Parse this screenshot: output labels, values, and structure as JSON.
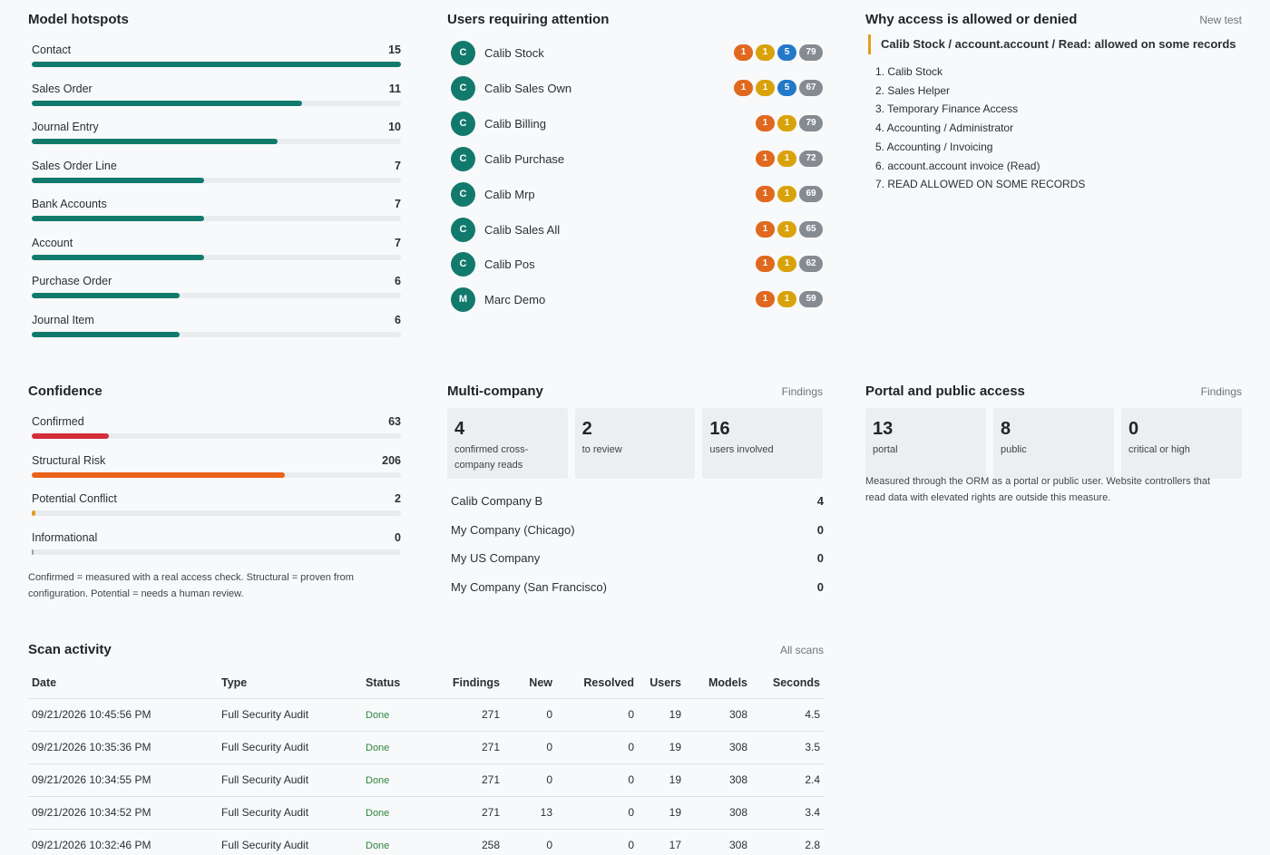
{
  "hotspots": {
    "title": "Model hotspots",
    "max": 15,
    "items": [
      {
        "label": "Contact",
        "value": 15
      },
      {
        "label": "Sales Order",
        "value": 11
      },
      {
        "label": "Journal Entry",
        "value": 10
      },
      {
        "label": "Sales Order Line",
        "value": 7
      },
      {
        "label": "Bank Accounts",
        "value": 7
      },
      {
        "label": "Account",
        "value": 7
      },
      {
        "label": "Purchase Order",
        "value": 6
      },
      {
        "label": "Journal Item",
        "value": 6
      }
    ]
  },
  "users": {
    "title": "Users requiring attention",
    "items": [
      {
        "initial": "C",
        "name": "Calib Stock",
        "badges": [
          {
            "t": "1",
            "c": "red"
          },
          {
            "t": "1",
            "c": "yel"
          },
          {
            "t": "5",
            "c": "blu"
          },
          {
            "t": "79",
            "c": "gry"
          }
        ]
      },
      {
        "initial": "C",
        "name": "Calib Sales Own",
        "badges": [
          {
            "t": "1",
            "c": "red"
          },
          {
            "t": "1",
            "c": "yel"
          },
          {
            "t": "5",
            "c": "blu"
          },
          {
            "t": "67",
            "c": "gry"
          }
        ]
      },
      {
        "initial": "C",
        "name": "Calib Billing",
        "badges": [
          {
            "t": "1",
            "c": "red"
          },
          {
            "t": "1",
            "c": "yel"
          },
          {
            "t": "79",
            "c": "gry"
          }
        ]
      },
      {
        "initial": "C",
        "name": "Calib Purchase",
        "badges": [
          {
            "t": "1",
            "c": "red"
          },
          {
            "t": "1",
            "c": "yel"
          },
          {
            "t": "72",
            "c": "gry"
          }
        ]
      },
      {
        "initial": "C",
        "name": "Calib Mrp",
        "badges": [
          {
            "t": "1",
            "c": "red"
          },
          {
            "t": "1",
            "c": "yel"
          },
          {
            "t": "69",
            "c": "gry"
          }
        ]
      },
      {
        "initial": "C",
        "name": "Calib Sales All",
        "badges": [
          {
            "t": "1",
            "c": "red"
          },
          {
            "t": "1",
            "c": "yel"
          },
          {
            "t": "65",
            "c": "gry"
          }
        ]
      },
      {
        "initial": "C",
        "name": "Calib Pos",
        "badges": [
          {
            "t": "1",
            "c": "red"
          },
          {
            "t": "1",
            "c": "yel"
          },
          {
            "t": "62",
            "c": "gry"
          }
        ]
      },
      {
        "initial": "M",
        "name": "Marc Demo",
        "badges": [
          {
            "t": "1",
            "c": "red"
          },
          {
            "t": "1",
            "c": "yel"
          },
          {
            "t": "59",
            "c": "gry"
          }
        ]
      }
    ]
  },
  "why": {
    "title": "Why access is allowed or denied",
    "link": "New test",
    "heading": "Calib Stock / account.account / Read: allowed on some records",
    "steps": [
      "1. Calib Stock",
      "2. Sales Helper",
      "3. Temporary Finance Access",
      "4. Accounting / Administrator",
      "5. Accounting / Invoicing",
      "6. account.account invoice (Read)",
      "7. READ ALLOWED ON SOME RECORDS"
    ]
  },
  "confidence": {
    "title": "Confidence",
    "max": 300,
    "items": [
      {
        "label": "Confirmed",
        "value": 63,
        "color": "#d42e3a"
      },
      {
        "label": "Structural Risk",
        "value": 206,
        "color": "#e8621a"
      },
      {
        "label": "Potential Conflict",
        "value": 2,
        "color": "#e0a020"
      },
      {
        "label": "Informational",
        "value": 0,
        "color": "#9aa0a6"
      }
    ],
    "note_line1": "Confirmed = measured with a real access check. Structural = proven from",
    "note_line2": "configuration. Potential = needs a human review."
  },
  "multicompany": {
    "title": "Multi-company",
    "link": "Findings",
    "stats": [
      {
        "num": "4",
        "cap": "confirmed cross-company reads"
      },
      {
        "num": "2",
        "cap": "to review"
      },
      {
        "num": "16",
        "cap": "users involved"
      }
    ],
    "companies": [
      {
        "name": "Calib Company B",
        "value": "4"
      },
      {
        "name": "My Company (Chicago)",
        "value": "0"
      },
      {
        "name": "My US Company",
        "value": "0"
      },
      {
        "name": "My Company (San Francisco)",
        "value": "0"
      }
    ]
  },
  "portal": {
    "title": "Portal and public access",
    "link": "Findings",
    "stats": [
      {
        "num": "13",
        "cap": "portal"
      },
      {
        "num": "8",
        "cap": "public"
      },
      {
        "num": "0",
        "cap": "critical or high"
      }
    ],
    "note_line1": "Measured through the ORM as a portal or public user. Website controllers that",
    "note_line2": "read data with elevated rights are outside this measure."
  },
  "scans": {
    "title": "Scan activity",
    "link": "All scans",
    "columns": [
      "Date",
      "Type",
      "Status",
      "Findings",
      "New",
      "Resolved",
      "Users",
      "Models",
      "Seconds"
    ],
    "rows": [
      [
        "09/21/2026 10:45:56 PM",
        "Full Security Audit",
        "Done",
        "271",
        "0",
        "0",
        "19",
        "308",
        "4.5"
      ],
      [
        "09/21/2026 10:35:36 PM",
        "Full Security Audit",
        "Done",
        "271",
        "0",
        "0",
        "19",
        "308",
        "3.5"
      ],
      [
        "09/21/2026 10:34:55 PM",
        "Full Security Audit",
        "Done",
        "271",
        "0",
        "0",
        "19",
        "308",
        "2.4"
      ],
      [
        "09/21/2026 10:34:52 PM",
        "Full Security Audit",
        "Done",
        "271",
        "13",
        "0",
        "19",
        "308",
        "3.4"
      ],
      [
        "09/21/2026 10:32:46 PM",
        "Full Security Audit",
        "Done",
        "258",
        "0",
        "0",
        "17",
        "308",
        "2.8"
      ]
    ]
  }
}
